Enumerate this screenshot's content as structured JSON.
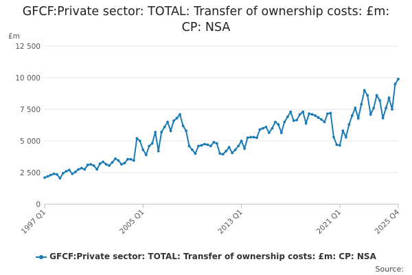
{
  "chart_data": {
    "type": "line",
    "title": "GFCF:Private sector: TOTAL: Transfer of ownership costs: £m: CP: NSA",
    "y_axis_label": "£m",
    "source": "Source:",
    "categories": [
      "1997 Q1",
      null,
      null,
      null,
      null,
      null,
      null,
      null,
      null,
      null,
      null,
      null,
      null,
      null,
      null,
      null,
      null,
      null,
      null,
      null,
      null,
      null,
      null,
      null,
      null,
      null,
      null,
      null,
      null,
      null,
      null,
      null,
      "2005 Q1",
      null,
      null,
      null,
      null,
      null,
      null,
      null,
      null,
      null,
      null,
      null,
      null,
      null,
      null,
      null,
      null,
      null,
      null,
      null,
      null,
      null,
      null,
      null,
      null,
      null,
      null,
      null,
      null,
      null,
      null,
      null,
      "2013 Q1",
      null,
      null,
      null,
      null,
      null,
      null,
      null,
      null,
      null,
      null,
      null,
      null,
      null,
      null,
      null,
      null,
      null,
      null,
      null,
      null,
      null,
      null,
      null,
      null,
      null,
      null,
      null,
      null,
      null,
      null,
      null,
      "2021 Q1",
      null,
      null,
      null,
      null,
      null,
      null,
      null,
      null,
      null,
      null,
      null,
      null,
      null,
      null,
      null,
      null,
      null,
      null,
      "2025 Q4"
    ],
    "series": [
      {
        "name": "GFCF:Private sector: TOTAL: Transfer of ownership costs: £m: CP: NSA",
        "color": "#1a7ab5",
        "values": [
          2100,
          2200,
          2300,
          2400,
          2350,
          2050,
          2450,
          2600,
          2700,
          2400,
          2550,
          2750,
          2850,
          2750,
          3100,
          3150,
          3050,
          2750,
          3200,
          3350,
          3150,
          3050,
          3300,
          3600,
          3450,
          3150,
          3250,
          3550,
          3550,
          3450,
          5200,
          5000,
          4300,
          3900,
          4600,
          4800,
          5700,
          4200,
          5700,
          6100,
          6500,
          5800,
          6600,
          6800,
          7100,
          6200,
          5800,
          4600,
          4300,
          4000,
          4600,
          4650,
          4750,
          4700,
          4600,
          4900,
          4800,
          4000,
          3950,
          4200,
          4500,
          4050,
          4300,
          4600,
          5000,
          4400,
          5250,
          5300,
          5300,
          5250,
          5900,
          6000,
          6100,
          5650,
          6000,
          6500,
          6300,
          5650,
          6500,
          6900,
          7300,
          6600,
          6650,
          7100,
          7300,
          6400,
          7150,
          7100,
          7000,
          6850,
          6700,
          6500,
          7150,
          7200,
          5300,
          4700,
          4650,
          5800,
          5300,
          6300,
          7000,
          7600,
          6800,
          7900,
          9000,
          8600,
          7100,
          7600,
          8600,
          8200,
          6800,
          7600,
          8400,
          7500,
          9500,
          9900
        ]
      }
    ],
    "ylim": [
      0,
      12500
    ],
    "yticks": [
      0,
      {
        "value": 2500,
        "label": "2 500"
      },
      {
        "value": 5000,
        "label": "5 000"
      },
      {
        "value": 7500,
        "label": "7 500"
      },
      {
        "value": 10000,
        "label": "10 000"
      },
      {
        "value": 12500,
        "label": "12 500"
      }
    ],
    "grid": true
  }
}
